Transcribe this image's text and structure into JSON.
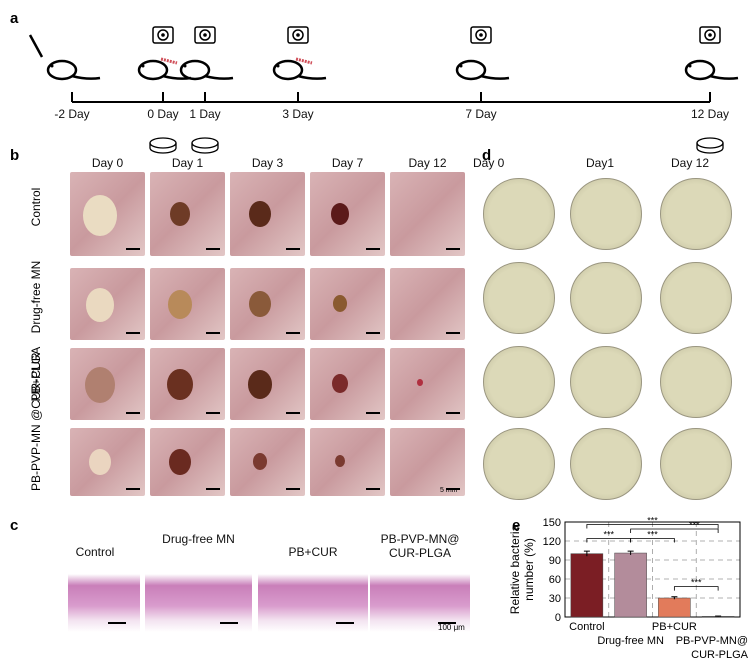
{
  "panel_labels": {
    "a": "a",
    "b": "b",
    "c": "c",
    "d": "d",
    "e": "e"
  },
  "timeline": {
    "days": [
      "-2 Day",
      "0 Day",
      "1 Day",
      "3 Day",
      "7 Day",
      "12 Day"
    ]
  },
  "panel_b": {
    "columns": [
      "Day 0",
      "Day 1",
      "Day 3",
      "Day 7",
      "Day 12"
    ],
    "rows": [
      "Control",
      "Drug-free MN",
      "PB+CUR",
      "PB-PVP-MN @CUR-PLGA"
    ],
    "scale_bar": "5 mm"
  },
  "panel_d": {
    "columns": [
      "Day   0",
      "Day1",
      "Day 12"
    ]
  },
  "panel_c": {
    "labels": [
      "Control",
      "Drug-free MN",
      "PB+CUR",
      "PB-PVP-MN@ CUR-PLGA"
    ],
    "scale_bar": "100 μm"
  },
  "chart_data": {
    "type": "bar",
    "categories": [
      "Control",
      "Drug-free MN",
      "PB+CUR",
      "PB-PVP-MN@ CUR-PLGA"
    ],
    "values": [
      100,
      101,
      30,
      1
    ],
    "errors": [
      4,
      3,
      2,
      0.5
    ],
    "colors": [
      "#7b1e24",
      "#b38c9b",
      "#e27b5b",
      "#555555"
    ],
    "ylabel": "Relative bacteria number (%)",
    "ylim": [
      0,
      150
    ],
    "yticks": [
      0,
      30,
      60,
      90,
      120,
      150
    ],
    "grid": true,
    "significance": [
      {
        "from": 0,
        "to": 3,
        "label": "***"
      },
      {
        "from": 1,
        "to": 3,
        "label": "***"
      },
      {
        "from": 0,
        "to": 1,
        "label": "***"
      },
      {
        "from": 1,
        "to": 2,
        "label": "***"
      },
      {
        "from": 2,
        "to": 3,
        "label": "***"
      }
    ]
  }
}
